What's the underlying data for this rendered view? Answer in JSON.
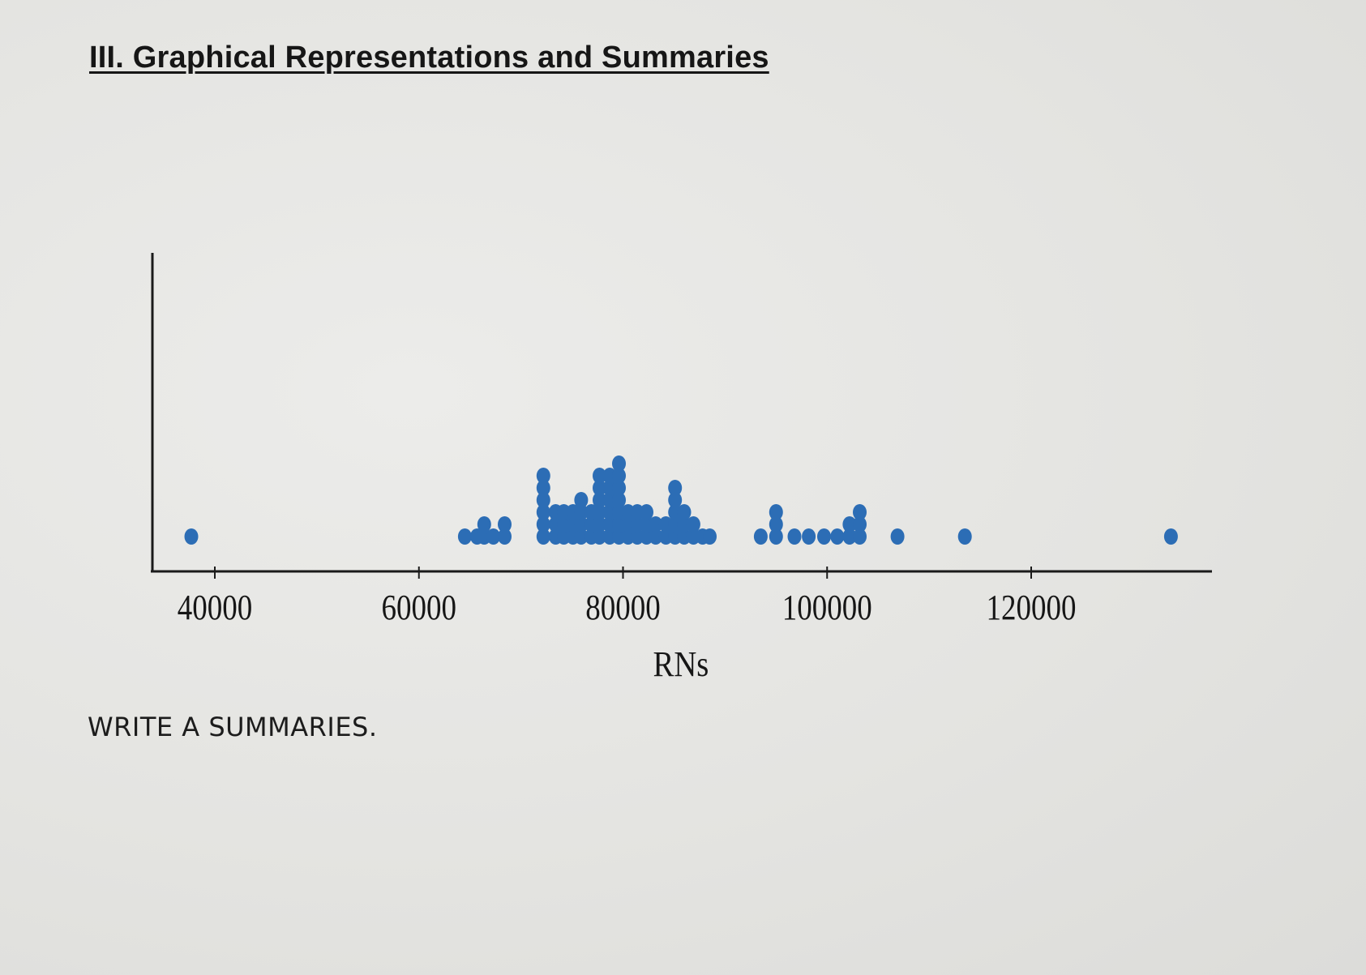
{
  "page": {
    "heading": "III. Graphical Representations and Summaries",
    "prompt": "WRITE A SUMMARIES."
  },
  "chart_data": {
    "type": "dot plot",
    "title": "",
    "xlabel": "RNs",
    "ylabel": "",
    "xlim": [
      37000,
      137000
    ],
    "x_ticks": [
      40000,
      60000,
      80000,
      100000,
      120000
    ],
    "tick_labels": [
      "40000",
      "60000",
      "80000",
      "100000",
      "120000"
    ],
    "grid": false,
    "dot_color": "#2c6db5",
    "points": [
      {
        "x": 37700,
        "count": 1
      },
      {
        "x": 64500,
        "count": 1
      },
      {
        "x": 65700,
        "count": 1
      },
      {
        "x": 66400,
        "count": 2
      },
      {
        "x": 67300,
        "count": 1
      },
      {
        "x": 68400,
        "count": 2
      },
      {
        "x": 72200,
        "count": 6
      },
      {
        "x": 73400,
        "count": 3
      },
      {
        "x": 74200,
        "count": 3
      },
      {
        "x": 75100,
        "count": 3
      },
      {
        "x": 75900,
        "count": 4
      },
      {
        "x": 76900,
        "count": 3
      },
      {
        "x": 77700,
        "count": 6
      },
      {
        "x": 78700,
        "count": 6
      },
      {
        "x": 79600,
        "count": 7
      },
      {
        "x": 80500,
        "count": 3
      },
      {
        "x": 81400,
        "count": 3
      },
      {
        "x": 82300,
        "count": 3
      },
      {
        "x": 83200,
        "count": 2
      },
      {
        "x": 84200,
        "count": 2
      },
      {
        "x": 85100,
        "count": 5
      },
      {
        "x": 86000,
        "count": 3
      },
      {
        "x": 86900,
        "count": 2
      },
      {
        "x": 87800,
        "count": 1
      },
      {
        "x": 88500,
        "count": 1
      },
      {
        "x": 93500,
        "count": 1
      },
      {
        "x": 95000,
        "count": 3
      },
      {
        "x": 96800,
        "count": 1
      },
      {
        "x": 98200,
        "count": 1
      },
      {
        "x": 99700,
        "count": 1
      },
      {
        "x": 101000,
        "count": 1
      },
      {
        "x": 102200,
        "count": 2
      },
      {
        "x": 103200,
        "count": 3
      },
      {
        "x": 106900,
        "count": 1
      },
      {
        "x": 113500,
        "count": 1
      },
      {
        "x": 133700,
        "count": 1
      }
    ]
  }
}
